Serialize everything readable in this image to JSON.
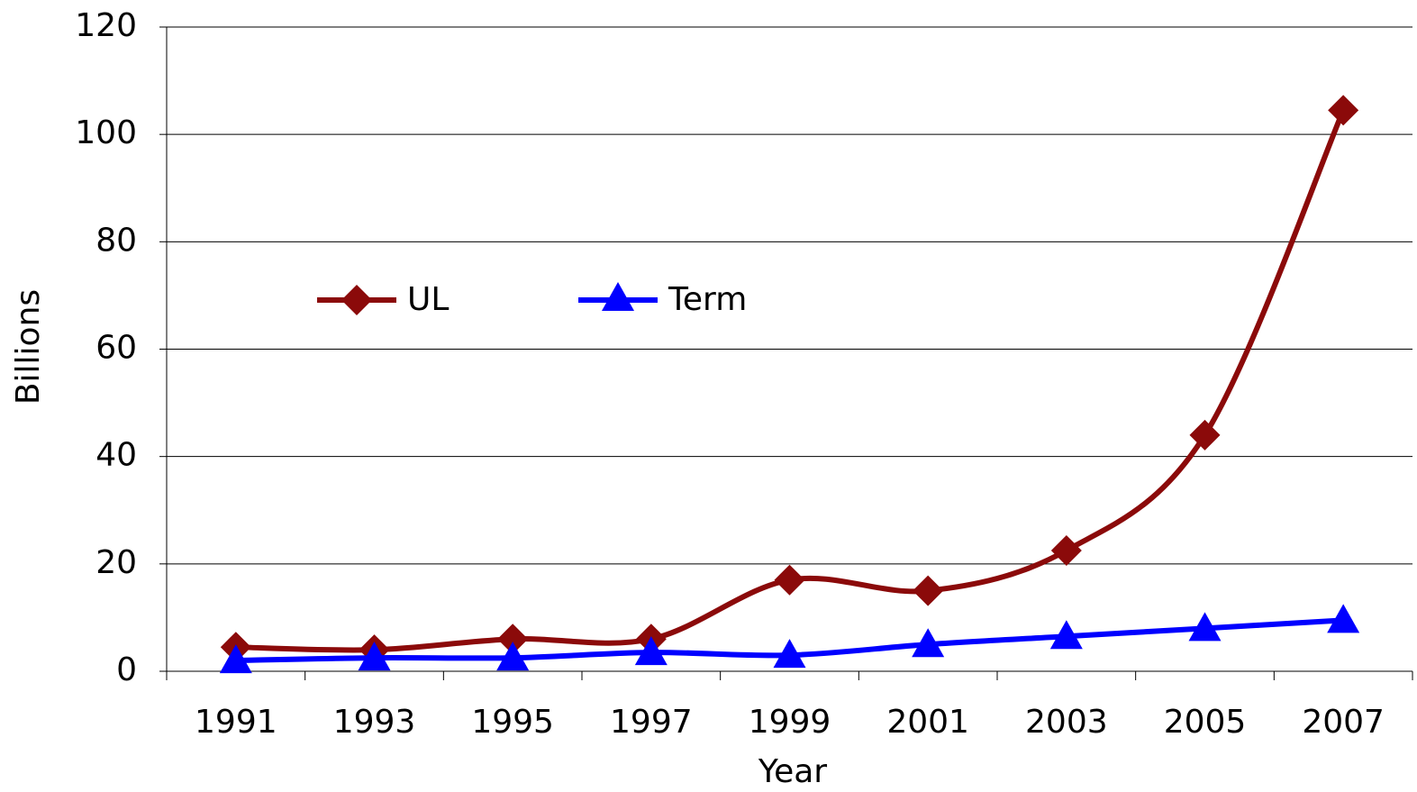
{
  "chart_data": {
    "type": "line",
    "x_label": "Year",
    "y_label": "Billions",
    "categories": [
      "1991",
      "1993",
      "1995",
      "1997",
      "1999",
      "2001",
      "2003",
      "2005",
      "2007"
    ],
    "series": [
      {
        "name": "UL",
        "color": "#8b0a0a",
        "marker": "diamond",
        "values": [
          4.5,
          4,
          6,
          6,
          17,
          15,
          22.5,
          44,
          104.5
        ]
      },
      {
        "name": "Term",
        "color": "#0000ff",
        "marker": "triangle",
        "values": [
          2,
          2.5,
          2.5,
          3.5,
          3,
          5,
          6.5,
          8,
          9.5
        ]
      }
    ],
    "ylim": [
      0,
      120
    ],
    "yticks": [
      0,
      20,
      40,
      60,
      80,
      100,
      120
    ],
    "grid": true,
    "smooth": true
  }
}
